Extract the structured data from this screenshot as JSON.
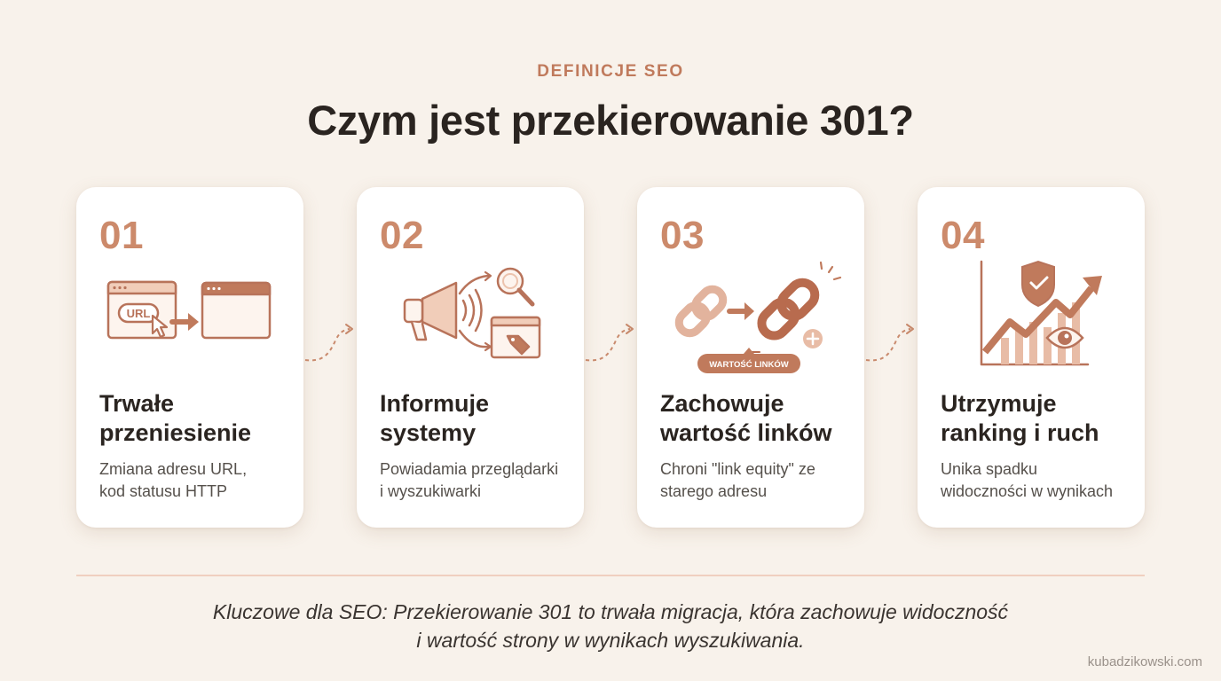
{
  "header": {
    "eyebrow": "DEFINICJE SEO",
    "title": "Czym jest przekierowanie 301?"
  },
  "colors": {
    "background": "#f8f2eb",
    "accent": "#c07a5c",
    "accent_light": "#ecc3ad",
    "card": "#ffffff"
  },
  "steps": [
    {
      "number": "01",
      "icon": "url-redirect-icon",
      "icon_label": "URL",
      "heading_line1": "Trwałe",
      "heading_line2": "przeniesienie",
      "desc_line1": "Zmiana adresu URL,",
      "desc_line2": "kod statusu HTTP"
    },
    {
      "number": "02",
      "icon": "megaphone-search-tag-icon",
      "heading_line1": "Informuje",
      "heading_line2": "systemy",
      "desc_line1": "Powiadamia przeglądarki",
      "desc_line2": "i wyszukiwarki"
    },
    {
      "number": "03",
      "icon": "chain-link-icon",
      "icon_label": "WARTOŚĆ LINKÓW",
      "heading_line1": "Zachowuje",
      "heading_line2": "wartość linków",
      "desc_line1": "Chroni \"link equity\" ze",
      "desc_line2": "starego adresu"
    },
    {
      "number": "04",
      "icon": "growth-chart-shield-eye-icon",
      "heading_line1": "Utrzymuje",
      "heading_line2": "ranking i ruch",
      "desc_line1": "Unika spadku",
      "desc_line2": "widoczności w wynikach"
    }
  ],
  "footer": {
    "note_line1": "Kluczowe dla SEO: Przekierowanie 301 to trwała migracja, która zachowuje widoczność",
    "note_line2": "i wartość strony w wynikach wyszukiwania.",
    "credit": "kubadzikowski.com"
  }
}
